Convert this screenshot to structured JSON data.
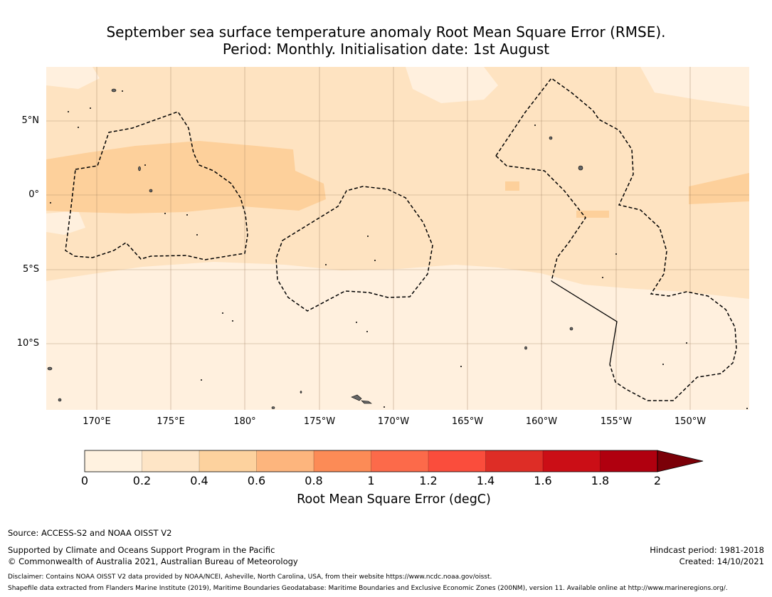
{
  "title": {
    "line1": "September sea surface temperature anomaly Root Mean Square Error (RMSE).",
    "line2": "Period: Monthly. Initialisation date: 1st August"
  },
  "map": {
    "lat_labels": [
      "5°N",
      "0°",
      "5°S",
      "10°S"
    ],
    "lon_labels": [
      "170°E",
      "175°E",
      "180°",
      "175°W",
      "170°W",
      "165°W",
      "160°W",
      "155°W",
      "150°W"
    ],
    "extent": {
      "lon_min": 166.5,
      "lon_max": 213.8,
      "lat_min": -14.5,
      "lat_max": 8.5
    },
    "colors": {
      "band_0_0.2": "#fff0de",
      "band_0.2_0.4": "#fee3c1",
      "band_0.4_0.6": "#fdd09b",
      "gridline": "#a08060",
      "boundary": "#000000"
    }
  },
  "colorbar": {
    "title": "Root Mean Square Error (degC)",
    "ticks": [
      "0",
      "0.2",
      "0.4",
      "0.6",
      "0.8",
      "1",
      "1.2",
      "1.4",
      "1.6",
      "1.8",
      "2"
    ],
    "colors": [
      "#fff2e0",
      "#fee5c6",
      "#fdd29e",
      "#fdb57d",
      "#fc8b56",
      "#fc6a4a",
      "#fa4d3c",
      "#de2d26",
      "#cb0e16",
      "#b0000f"
    ],
    "extend_color": "#7b0008"
  },
  "footer": {
    "source": "Source: ACCESS-S2 and NOAA OISST V2",
    "supported": "Supported by Climate and Oceans Support Program in the Pacific",
    "copyright": "© Commonwealth of Australia 2021, Australian Bureau of Meteorology",
    "hindcast": "Hindcast period: 1981-2018",
    "created": "Created: 14/10/2021",
    "disclaimer": "Disclaimer: Contains NOAA OISST V2 data provided by NOAA/NCEI, Asheville, North Carolina, USA, from their website https://www.ncdc.noaa.gov/oisst.",
    "shapefile": "Shapefile data extracted from Flanders Marine Institute (2019), Maritime Boundaries Geodatabase: Maritime Boundaries and Exclusive Economic Zones (200NM), version 11. Available online at http://www.marineregions.org/."
  }
}
